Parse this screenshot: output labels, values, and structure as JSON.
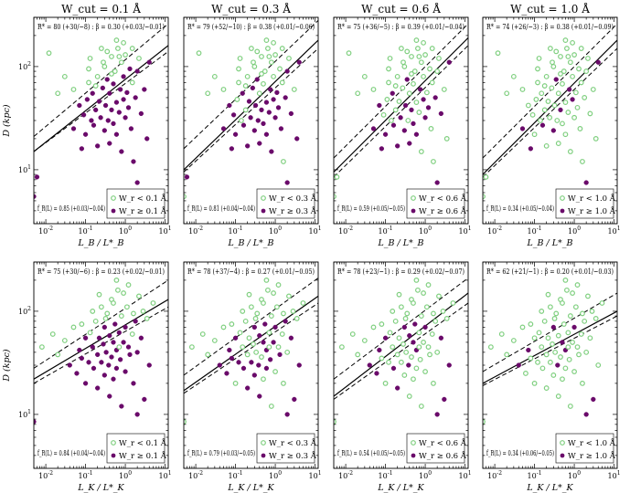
{
  "figure": {
    "row_xlabels": [
      "L_B / L*_B",
      "L_K / L*_K"
    ],
    "ylabel": "D (kpc)"
  },
  "colors": {
    "weak": "#7fcf7f",
    "strong": "#6a0a6a"
  },
  "panels": [
    {
      "id": "r0c0",
      "row": 0,
      "col": 0,
      "title": "W_cut = 0.1 Å",
      "ann_top": "R* = 80 (+30/−8) : β = 0.30 (+0.03/−0.01)",
      "ann_bottom": "f_R(L) = 0.85 (+0.03/−0.04)",
      "legend": [
        "W_r < 0.1 Å",
        "W_r ≥ 0.1 Å"
      ]
    },
    {
      "id": "r0c1",
      "row": 0,
      "col": 1,
      "title": "W_cut = 0.3 Å",
      "ann_top": "R* = 79 (+52/−10) : β = 0.38 (+0.01/−0.06)",
      "ann_bottom": "f_R(L) = 0.81 (+0.04/−0.04)",
      "legend": [
        "W_r < 0.3 Å",
        "W_r ≥ 0.3 Å"
      ]
    },
    {
      "id": "r0c2",
      "row": 0,
      "col": 2,
      "title": "W_cut = 0.6 Å",
      "ann_top": "R* = 75 (+36/−5) : β = 0.39 (+0.01/−0.04)",
      "ann_bottom": "f_R(L) = 0.59 (+0.05/−0.05)",
      "legend": [
        "W_r < 0.6 Å",
        "W_r ≥ 0.6 Å"
      ]
    },
    {
      "id": "r0c3",
      "row": 0,
      "col": 3,
      "title": "W_cut = 1.0 Å",
      "ann_top": "R* = 74 (+26/−3) : β = 0.38 (+0.01/−0.09)",
      "ann_bottom": "f_R(L) = 0.34 (+0.05/−0.04)",
      "legend": [
        "W_r < 1.0 Å",
        "W_r ≥ 1.0 Å"
      ]
    },
    {
      "id": "r1c0",
      "row": 1,
      "col": 0,
      "title": "",
      "ann_top": "R* = 75 (+30/−6) : β = 0.23 (+0.02/−0.01)",
      "ann_bottom": "f_R(L) = 0.84 (+0.04/−0.04)",
      "legend": [
        "W_r < 0.1 Å",
        "W_r ≥ 0.1 Å"
      ]
    },
    {
      "id": "r1c1",
      "row": 1,
      "col": 1,
      "title": "",
      "ann_top": "R* = 78 (+37/−4) : β = 0.27 (+0.01/−0.05)",
      "ann_bottom": "f_R(L) = 0.79 (+0.03/−0.05)",
      "legend": [
        "W_r < 0.3 Å",
        "W_r ≥ 0.3 Å"
      ]
    },
    {
      "id": "r1c2",
      "row": 1,
      "col": 2,
      "title": "",
      "ann_top": "R* = 78 (+23/−1) : β = 0.29 (+0.02/−0.07)",
      "ann_bottom": "f_R(L) = 0.54 (+0.05/−0.05)",
      "legend": [
        "W_r < 0.6 Å",
        "W_r ≥ 0.6 Å"
      ]
    },
    {
      "id": "r1c3",
      "row": 1,
      "col": 3,
      "title": "",
      "ann_top": "R* = 62 (+21/−1) : β = 0.20 (+0.01/−0.03)",
      "ann_bottom": "f_R(L) = 0.34 (+0.06/−0.05)",
      "legend": [
        "W_r < 1.0 Å",
        "W_r ≥ 1.0 Å"
      ]
    }
  ],
  "chart_data": {
    "type": "scatter",
    "xscale": "log",
    "yscale": "log",
    "xlim": [
      0.005,
      12
    ],
    "ylim": [
      3,
      300
    ],
    "xticks": [
      0.01,
      0.1,
      1,
      10
    ],
    "xticklabels": [
      "10^-2",
      "10^-1",
      "10^0",
      "10^1"
    ],
    "yticks": [
      10,
      100
    ],
    "yticklabels": [
      "10^1",
      "10^2"
    ],
    "series": [
      {
        "name": "W_r < W_cut",
        "marker": "open circle",
        "color": "#7fcf7f"
      },
      {
        "name": "W_r ≥ W_cut",
        "marker": "filled circle",
        "color": "#6a0a6a"
      }
    ],
    "fit_lines": {
      "note": "solid: best fit D = R* (L/L*)^β ; dashed: 1σ envelope",
      "r0c0": [
        {
          "x0": 0.005,
          "y0": 15,
          "x1": 12,
          "y1": 160
        },
        {
          "x0": 0.005,
          "y0": 21,
          "x1": 12,
          "y1": 260
        },
        {
          "x0": 0.005,
          "y0": 15,
          "x1": 12,
          "y1": 140
        }
      ],
      "r0c1": [
        {
          "x0": 0.005,
          "y0": 10,
          "x1": 12,
          "y1": 180
        },
        {
          "x0": 0.005,
          "y0": 16,
          "x1": 12,
          "y1": 280
        },
        {
          "x0": 0.005,
          "y0": 9.5,
          "x1": 12,
          "y1": 150
        }
      ],
      "r0c2": [
        {
          "x0": 0.005,
          "y0": 9.5,
          "x1": 12,
          "y1": 190
        },
        {
          "x0": 0.005,
          "y0": 13,
          "x1": 12,
          "y1": 260
        },
        {
          "x0": 0.005,
          "y0": 8.5,
          "x1": 12,
          "y1": 160
        }
      ],
      "r0c3": [
        {
          "x0": 0.005,
          "y0": 9,
          "x1": 12,
          "y1": 180
        },
        {
          "x0": 0.005,
          "y0": 13,
          "x1": 12,
          "y1": 260
        },
        {
          "x0": 0.005,
          "y0": 8.5,
          "x1": 12,
          "y1": 150
        }
      ],
      "r1c0": [
        {
          "x0": 0.005,
          "y0": 22,
          "x1": 12,
          "y1": 130
        },
        {
          "x0": 0.005,
          "y0": 28,
          "x1": 12,
          "y1": 200
        },
        {
          "x0": 0.005,
          "y0": 20,
          "x1": 12,
          "y1": 110
        }
      ],
      "r1c1": [
        {
          "x0": 0.005,
          "y0": 17,
          "x1": 12,
          "y1": 140
        },
        {
          "x0": 0.005,
          "y0": 24,
          "x1": 12,
          "y1": 210
        },
        {
          "x0": 0.005,
          "y0": 16,
          "x1": 12,
          "y1": 120
        }
      ],
      "r1c2": [
        {
          "x0": 0.005,
          "y0": 15,
          "x1": 12,
          "y1": 150
        },
        {
          "x0": 0.005,
          "y0": 22,
          "x1": 12,
          "y1": 210
        },
        {
          "x0": 0.005,
          "y0": 14,
          "x1": 12,
          "y1": 120
        }
      ],
      "r1c3": [
        {
          "x0": 0.005,
          "y0": 20,
          "x1": 12,
          "y1": 100
        },
        {
          "x0": 0.005,
          "y0": 26,
          "x1": 12,
          "y1": 150
        },
        {
          "x0": 0.005,
          "y0": 19,
          "x1": 12,
          "y1": 90
        }
      ]
    },
    "points": {
      "note": "approximate [L/L*, D(kpc), strong?] values read from the figure",
      "row0": [
        [
          0.005,
          5.5,
          1
        ],
        [
          0.006,
          8.5,
          1
        ],
        [
          0.012,
          135,
          0
        ],
        [
          0.02,
          55,
          0
        ],
        [
          0.03,
          80,
          0
        ],
        [
          0.05,
          25,
          1
        ],
        [
          0.05,
          60,
          0
        ],
        [
          0.07,
          42,
          1
        ],
        [
          0.08,
          16,
          1
        ],
        [
          0.09,
          34,
          1
        ],
        [
          0.1,
          22,
          1
        ],
        [
          0.11,
          48,
          1
        ],
        [
          0.12,
          70,
          0
        ],
        [
          0.13,
          120,
          0
        ],
        [
          0.14,
          30,
          1
        ],
        [
          0.15,
          55,
          1
        ],
        [
          0.16,
          27,
          1
        ],
        [
          0.18,
          38,
          1
        ],
        [
          0.2,
          17,
          1
        ],
        [
          0.2,
          80,
          0
        ],
        [
          0.22,
          46,
          1
        ],
        [
          0.24,
          32,
          1
        ],
        [
          0.25,
          150,
          0
        ],
        [
          0.27,
          62,
          1
        ],
        [
          0.3,
          24,
          1
        ],
        [
          0.3,
          100,
          0
        ],
        [
          0.32,
          42,
          1
        ],
        [
          0.35,
          75,
          1
        ],
        [
          0.37,
          30,
          1
        ],
        [
          0.4,
          18,
          1
        ],
        [
          0.4,
          55,
          1
        ],
        [
          0.45,
          125,
          0
        ],
        [
          0.45,
          38,
          1
        ],
        [
          0.5,
          68,
          1
        ],
        [
          0.5,
          28,
          1
        ],
        [
          0.55,
          90,
          0
        ],
        [
          0.6,
          45,
          1
        ],
        [
          0.6,
          22,
          1
        ],
        [
          0.65,
          150,
          0
        ],
        [
          0.7,
          36,
          1
        ],
        [
          0.75,
          60,
          1
        ],
        [
          0.8,
          110,
          0
        ],
        [
          0.8,
          15,
          1
        ],
        [
          0.9,
          48,
          1
        ],
        [
          0.9,
          80,
          1
        ],
        [
          1.0,
          32,
          1
        ],
        [
          1.0,
          130,
          0
        ],
        [
          1.1,
          56,
          1
        ],
        [
          1.2,
          40,
          1
        ],
        [
          1.3,
          95,
          1
        ],
        [
          1.4,
          25,
          1
        ],
        [
          1.5,
          70,
          0
        ],
        [
          1.6,
          12,
          1
        ],
        [
          1.8,
          50,
          1
        ],
        [
          2.0,
          7.5,
          1
        ],
        [
          2.0,
          90,
          1
        ],
        [
          2.5,
          35,
          1
        ],
        [
          3.0,
          60,
          1
        ],
        [
          3.5,
          20,
          1
        ],
        [
          4.0,
          110,
          1
        ],
        [
          0.35,
          140,
          0
        ],
        [
          0.28,
          110,
          0
        ],
        [
          0.6,
          180,
          0
        ],
        [
          0.9,
          170,
          0
        ],
        [
          1.5,
          150,
          0
        ],
        [
          0.18,
          65,
          0
        ],
        [
          0.12,
          95,
          0
        ],
        [
          0.7,
          125,
          0
        ],
        [
          2.2,
          120,
          0
        ],
        [
          0.45,
          85,
          0
        ]
      ],
      "row1": [
        [
          0.005,
          8.5,
          1
        ],
        [
          0.008,
          45,
          0
        ],
        [
          0.015,
          60,
          0
        ],
        [
          0.02,
          38,
          0
        ],
        [
          0.03,
          52,
          0
        ],
        [
          0.04,
          30,
          1
        ],
        [
          0.05,
          70,
          0
        ],
        [
          0.06,
          25,
          1
        ],
        [
          0.07,
          42,
          1
        ],
        [
          0.08,
          35,
          1
        ],
        [
          0.1,
          55,
          1
        ],
        [
          0.1,
          20,
          1
        ],
        [
          0.12,
          32,
          1
        ],
        [
          0.13,
          62,
          0
        ],
        [
          0.15,
          45,
          1
        ],
        [
          0.16,
          28,
          1
        ],
        [
          0.18,
          80,
          0
        ],
        [
          0.2,
          38,
          1
        ],
        [
          0.2,
          18,
          1
        ],
        [
          0.22,
          55,
          1
        ],
        [
          0.25,
          32,
          1
        ],
        [
          0.25,
          110,
          0
        ],
        [
          0.28,
          48,
          1
        ],
        [
          0.3,
          24,
          1
        ],
        [
          0.3,
          70,
          1
        ],
        [
          0.33,
          40,
          1
        ],
        [
          0.35,
          95,
          0
        ],
        [
          0.38,
          30,
          1
        ],
        [
          0.4,
          15,
          1
        ],
        [
          0.4,
          58,
          1
        ],
        [
          0.45,
          36,
          1
        ],
        [
          0.45,
          130,
          0
        ],
        [
          0.5,
          50,
          1
        ],
        [
          0.5,
          22,
          1
        ],
        [
          0.55,
          75,
          1
        ],
        [
          0.6,
          42,
          1
        ],
        [
          0.6,
          28,
          1
        ],
        [
          0.65,
          160,
          0
        ],
        [
          0.7,
          62,
          1
        ],
        [
          0.75,
          34,
          1
        ],
        [
          0.8,
          90,
          0
        ],
        [
          0.8,
          12,
          1
        ],
        [
          0.9,
          50,
          1
        ],
        [
          1.0,
          70,
          1
        ],
        [
          1.0,
          26,
          1
        ],
        [
          1.1,
          110,
          0
        ],
        [
          1.2,
          45,
          1
        ],
        [
          1.3,
          38,
          1
        ],
        [
          1.5,
          60,
          0
        ],
        [
          1.6,
          20,
          1
        ],
        [
          1.8,
          80,
          1
        ],
        [
          2.0,
          10,
          1
        ],
        [
          2.0,
          40,
          1
        ],
        [
          2.5,
          55,
          1
        ],
        [
          3.0,
          14,
          1
        ],
        [
          3.5,
          85,
          0
        ],
        [
          4.0,
          30,
          1
        ],
        [
          5.0,
          120,
          0
        ],
        [
          0.22,
          145,
          0
        ],
        [
          0.6,
          200,
          0
        ],
        [
          1.2,
          180,
          0
        ],
        [
          0.15,
          100,
          0
        ],
        [
          0.9,
          150,
          0
        ],
        [
          2.2,
          140,
          0
        ],
        [
          0.32,
          85,
          0
        ],
        [
          0.5,
          120,
          0
        ],
        [
          1.6,
          95,
          0
        ],
        [
          0.08,
          75,
          0
        ],
        [
          2.8,
          100,
          0
        ],
        [
          0.7,
          45,
          0
        ]
      ]
    }
  }
}
